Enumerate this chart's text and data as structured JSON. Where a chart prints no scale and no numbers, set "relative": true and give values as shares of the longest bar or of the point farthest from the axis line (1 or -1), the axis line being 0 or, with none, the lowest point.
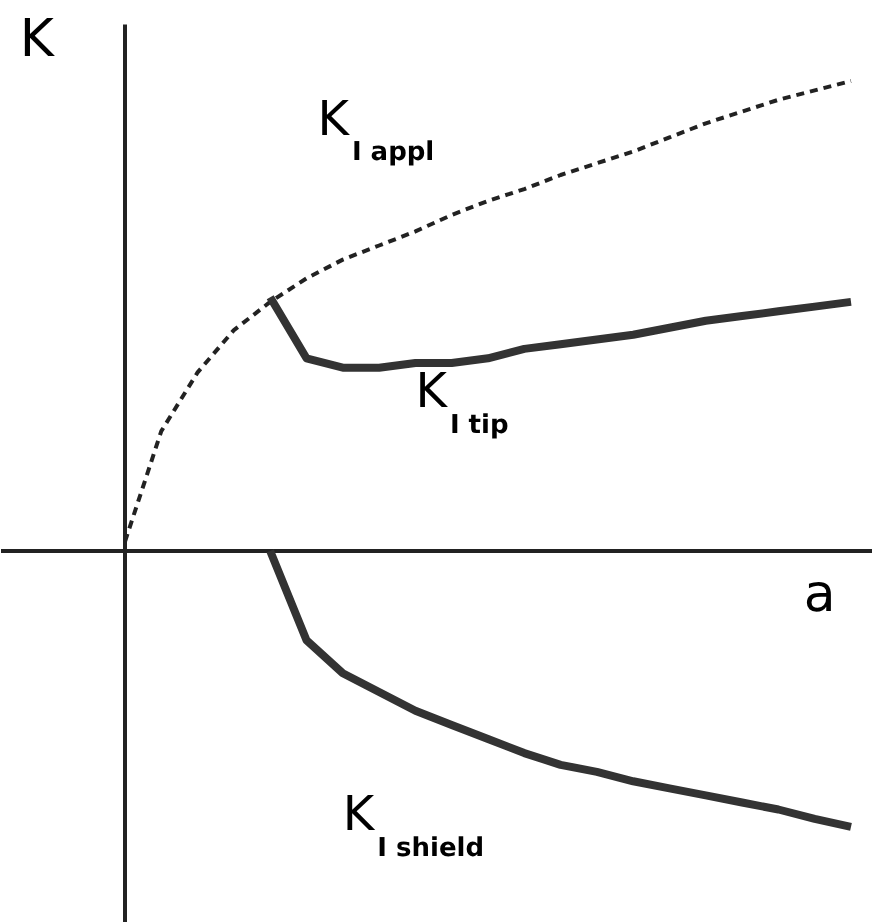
{
  "chart_data": {
    "type": "line",
    "relative": true,
    "xlabel": "a",
    "ylabel": "K",
    "grid": false,
    "categories": [
      null,
      null,
      null,
      null,
      null,
      null,
      null,
      null,
      null,
      null,
      null,
      null,
      null,
      null,
      null,
      null,
      null,
      null,
      null,
      null,
      null
    ],
    "series": [
      {
        "name": "K$_{I appl}$",
        "color": "#222222",
        "line_style": "dashed",
        "values": [
          0.02,
          0.255,
          0.38,
          0.47,
          0.53,
          0.58,
          0.62,
          0.65,
          0.68,
          0.715,
          0.745,
          0.77,
          0.8,
          0.825,
          0.85,
          0.88,
          0.91,
          0.935,
          0.96,
          0.98,
          1.0
        ]
      },
      {
        "name": "K$_{I tip}$",
        "color": "#333333",
        "line_style": "solid",
        "values": [
          null,
          null,
          null,
          null,
          0.54,
          0.41,
          0.39,
          0.39,
          0.4,
          0.4,
          0.41,
          0.43,
          0.44,
          0.45,
          0.46,
          0.475,
          0.49,
          0.5,
          0.51,
          0.52,
          0.53
        ]
      },
      {
        "name": "K$_{I shield}$",
        "color": "#333333",
        "line_style": "solid",
        "values": [
          null,
          null,
          null,
          null,
          0.0,
          -0.19,
          -0.26,
          -0.3,
          -0.34,
          -0.37,
          -0.4,
          -0.43,
          -0.455,
          -0.47,
          -0.49,
          -0.505,
          -0.52,
          -0.535,
          -0.55,
          -0.57,
          -0.587
        ]
      }
    ]
  }
}
